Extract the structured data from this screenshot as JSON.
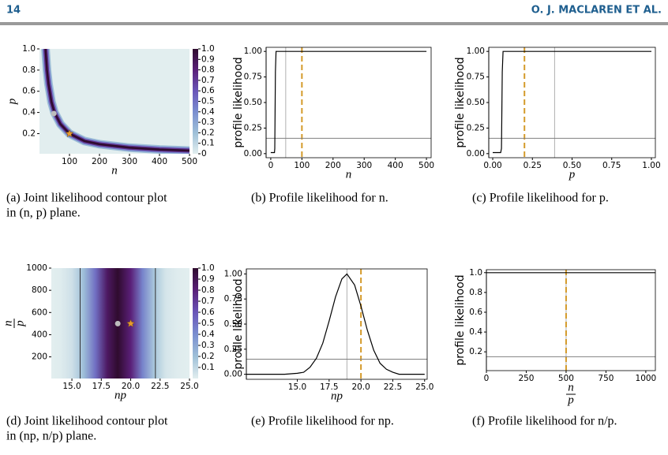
{
  "header": {
    "page_number": "14",
    "authors": "O. J. MACLAREN ET AL."
  },
  "captions": [
    [
      "(a) Joint likelihood contour plot",
      "in (n, p) plane."
    ],
    [
      "(b) Profile likelihood for n."
    ],
    [
      "(c) Profile likelihood for p."
    ],
    [
      "(d) Joint likelihood contour plot",
      "in (np, n/p) plane."
    ],
    [
      "(e) Profile likelihood for np."
    ],
    [
      "(f) Profile likelihood for n/p."
    ]
  ],
  "chart_data": [
    {
      "type": "contour",
      "xlabel": "n",
      "ylabel": "p",
      "xlim": [
        0,
        500
      ],
      "ylim": [
        0.01,
        1.0
      ],
      "xticks": [
        100,
        200,
        300,
        400,
        500
      ],
      "yticks": [
        {
          "value": 0.2,
          "label": "0.2"
        },
        {
          "value": 0.4,
          "label": "0.4"
        },
        {
          "value": 0.6,
          "label": "0.6"
        },
        {
          "value": 0.8,
          "label": "0.8"
        },
        {
          "value": 1.0,
          "label": "1.0"
        }
      ],
      "ridge": {
        "x": [
          20,
          25,
          30,
          40,
          50,
          70,
          100,
          150,
          200,
          300,
          400,
          500
        ],
        "values": [
          1.0,
          0.8,
          0.67,
          0.5,
          0.4,
          0.29,
          0.2,
          0.13,
          0.1,
          0.067,
          0.05,
          0.04
        ]
      },
      "points": [
        {
          "x": 48,
          "y": 0.39,
          "color": "#bdbdbd",
          "marker": "circle"
        },
        {
          "x": 100,
          "y": 0.2,
          "color": "#e69a2e",
          "marker": "star"
        }
      ],
      "colorbar": {
        "colors": [
          "#e2eeef",
          "#9fc0d8",
          "#7a8ed0",
          "#6a55b8",
          "#5a1f78",
          "#2f0b2e"
        ],
        "ticks": [
          0,
          0.1,
          0.2,
          0.3,
          0.4,
          0.5,
          0.6,
          0.7,
          0.8,
          0.9,
          {
            "value": 1,
            "label": "1.0"
          }
        ]
      }
    },
    {
      "type": "line",
      "xlabel": "n",
      "ylabel": "profile likelihood",
      "xlim": [
        -15,
        515
      ],
      "ylim": [
        -0.04,
        1.04
      ],
      "xticks": [
        0,
        100,
        200,
        300,
        400,
        500
      ],
      "yticks": [
        {
          "value": 0,
          "label": "0.00"
        },
        {
          "value": 0.25,
          "label": "0.25"
        },
        {
          "value": 0.5,
          "label": "0.50"
        },
        {
          "value": 0.75,
          "label": "0.75"
        },
        {
          "value": 1,
          "label": "1.00"
        }
      ],
      "x": [
        0,
        12,
        13,
        15,
        17,
        500
      ],
      "values": [
        0.01,
        0.01,
        0.05,
        0.8,
        1,
        1
      ],
      "color": "#000000",
      "reference_lines": [
        {
          "x": 48,
          "color": "#b0b0b0",
          "style": "solid"
        },
        {
          "x": 100,
          "color": "#d49a2a",
          "style": "dashed"
        },
        {
          "y": 0.15,
          "color": "#808080",
          "style": "solid"
        }
      ]
    },
    {
      "type": "line",
      "xlabel": "p",
      "ylabel": "profile likelihood",
      "xlim": [
        -0.025,
        1.025
      ],
      "ylim": [
        -0.04,
        1.04
      ],
      "xticks": [
        {
          "value": 0,
          "label": "0.00"
        },
        {
          "value": 0.25,
          "label": "0.25"
        },
        {
          "value": 0.5,
          "label": "0.50"
        },
        {
          "value": 0.75,
          "label": "0.75"
        },
        {
          "value": 1,
          "label": "1.00"
        }
      ],
      "yticks": [
        {
          "value": 0,
          "label": "0.00"
        },
        {
          "value": 0.25,
          "label": "0.25"
        },
        {
          "value": 0.5,
          "label": "0.50"
        },
        {
          "value": 0.75,
          "label": "0.75"
        },
        {
          "value": 1,
          "label": "1.00"
        }
      ],
      "x": [
        0,
        0.05,
        0.055,
        0.06,
        0.065,
        1.0
      ],
      "values": [
        0.01,
        0.01,
        0.05,
        0.8,
        1,
        1
      ],
      "color": "#000000",
      "reference_lines": [
        {
          "x": 0.39,
          "color": "#b0b0b0",
          "style": "solid"
        },
        {
          "x": 0.2,
          "color": "#d49a2a",
          "style": "dashed"
        },
        {
          "y": 0.15,
          "color": "#808080",
          "style": "solid"
        }
      ]
    },
    {
      "type": "contour",
      "xlabel": "np",
      "ylabel": {
        "numerator": "n",
        "denominator": "p"
      },
      "xlim": [
        13.25,
        25
      ],
      "ylim": [
        5,
        1000
      ],
      "xticks": [
        {
          "value": 15,
          "label": "15.0"
        },
        {
          "value": 17.5,
          "label": "17.5"
        },
        {
          "value": 20,
          "label": "20.0"
        },
        {
          "value": 22.5,
          "label": "22.5"
        },
        {
          "value": 25,
          "label": "25.0"
        }
      ],
      "yticks": [
        200,
        400,
        600,
        800,
        1000
      ],
      "x": [
        13,
        14,
        15,
        16,
        17,
        18,
        18.9,
        20,
        21,
        22,
        23,
        24,
        25
      ],
      "values": [
        0.0,
        0.01,
        0.06,
        0.21,
        0.51,
        0.86,
        1.0,
        0.8,
        0.44,
        0.17,
        0.04,
        0.01,
        0.0
      ],
      "reference_lines": [
        {
          "x": 15.7,
          "color": "#333333",
          "style": "solid"
        },
        {
          "x": 22.1,
          "color": "#333333",
          "style": "solid"
        }
      ],
      "points": [
        {
          "x": 18.9,
          "y": 500,
          "color": "#bdbdbd",
          "marker": "circle"
        },
        {
          "x": 20,
          "y": 500,
          "color": "#e69a2e",
          "marker": "star"
        }
      ],
      "colorbar": {
        "colors": [
          "#e2eeef",
          "#9fc0d8",
          "#7a8ed0",
          "#6a55b8",
          "#5a1f78",
          "#2f0b2e"
        ],
        "ticks": [
          0.1,
          0.2,
          0.3,
          0.4,
          0.5,
          0.6,
          0.7,
          0.8,
          0.9,
          {
            "value": 1,
            "label": "1.0"
          }
        ]
      }
    },
    {
      "type": "line",
      "xlabel": "np",
      "ylabel": "profile likelihood",
      "xlim": [
        11,
        25.2
      ],
      "ylim": [
        -0.05,
        1.05
      ],
      "xticks": [
        {
          "value": 15,
          "label": "15.0"
        },
        {
          "value": 17.5,
          "label": "17.5"
        },
        {
          "value": 20,
          "label": "20.0"
        },
        {
          "value": 22.5,
          "label": "22.5"
        },
        {
          "value": 25,
          "label": "25.0"
        }
      ],
      "yticks": [
        {
          "value": 0,
          "label": "0.00"
        },
        {
          "value": 0.25,
          "label": "0.25"
        },
        {
          "value": 0.5,
          "label": "0.50"
        },
        {
          "value": 0.75,
          "label": "0.75"
        },
        {
          "value": 1,
          "label": "1.00"
        }
      ],
      "x": [
        11,
        12,
        13,
        14,
        15,
        15.5,
        16,
        16.5,
        17,
        17.5,
        18,
        18.5,
        18.9,
        19.5,
        20,
        20.5,
        21,
        21.5,
        22,
        22.5,
        23,
        24,
        25
      ],
      "values": [
        0,
        0,
        0,
        0,
        0.01,
        0.02,
        0.07,
        0.16,
        0.31,
        0.53,
        0.77,
        0.95,
        1.0,
        0.89,
        0.68,
        0.44,
        0.24,
        0.11,
        0.05,
        0.02,
        0,
        0,
        0
      ],
      "color": "#000000",
      "reference_lines": [
        {
          "x": 18.9,
          "color": "#b0b0b0",
          "style": "solid"
        },
        {
          "x": 20,
          "color": "#d49a2a",
          "style": "dashed"
        },
        {
          "y": 0.15,
          "color": "#808080",
          "style": "solid"
        }
      ]
    },
    {
      "type": "line",
      "xlabel": {
        "numerator": "n",
        "denominator": "p"
      },
      "ylabel": "profile likelihood",
      "xlim": [
        0,
        1060
      ],
      "ylim": [
        0.01,
        1.03
      ],
      "xticks": [
        0,
        250,
        500,
        750,
        1000
      ],
      "yticks": [
        {
          "value": 0.2,
          "label": "0.2"
        },
        {
          "value": 0.4,
          "label": "0.4"
        },
        {
          "value": 0.6,
          "label": "0.6"
        },
        {
          "value": 0.8,
          "label": "0.8"
        },
        {
          "value": 1,
          "label": "1.0"
        }
      ],
      "x": [
        0,
        1060
      ],
      "values": [
        1.0,
        1.0
      ],
      "color": "#000000",
      "reference_lines": [
        {
          "x": 500,
          "color": "#b0b0b0",
          "style": "solid"
        },
        {
          "x": 500,
          "color": "#d49a2a",
          "style": "dashed"
        },
        {
          "y": 0.15,
          "color": "#808080",
          "style": "solid"
        }
      ]
    }
  ]
}
